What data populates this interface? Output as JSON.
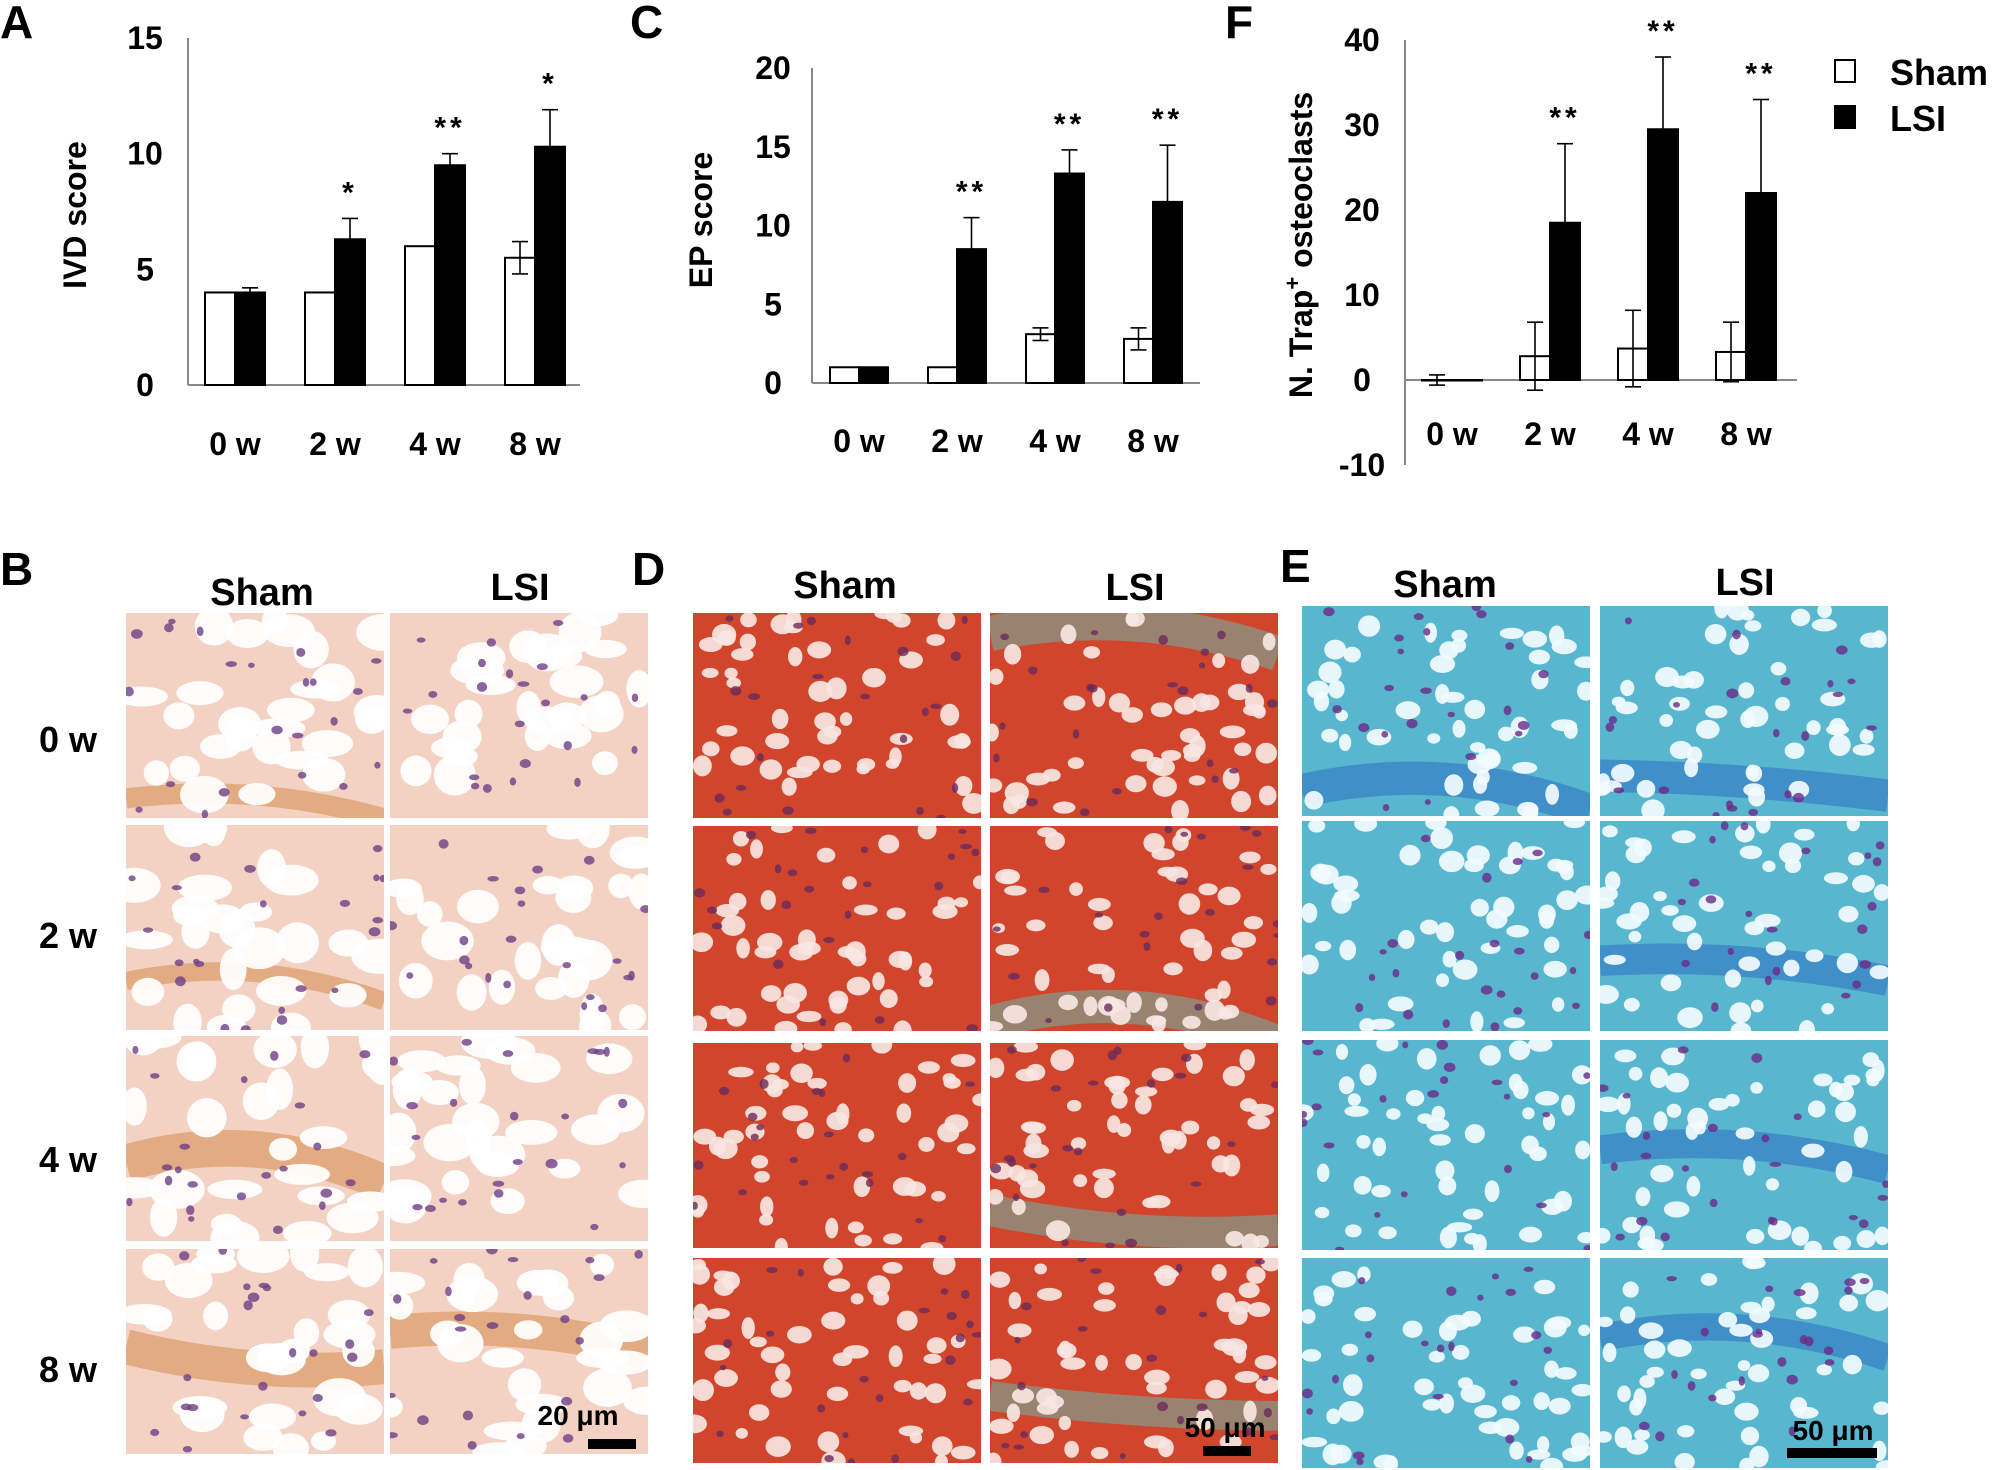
{
  "chart_data": [
    {
      "id": "A",
      "type": "bar",
      "panel_label": "A",
      "ylabel": "IVD score",
      "ylim": [
        0,
        15
      ],
      "yticks": [
        0,
        5,
        10,
        15
      ],
      "categories": [
        "0 w",
        "2 w",
        "4 w",
        "8 w"
      ],
      "series": [
        {
          "name": "Sham",
          "values": [
            4.0,
            4.0,
            6.0,
            5.5
          ],
          "errors": [
            0,
            0,
            0,
            0.7
          ],
          "fill": "#ffffff"
        },
        {
          "name": "LSI",
          "values": [
            4.0,
            6.3,
            9.5,
            10.3
          ],
          "errors": [
            0.2,
            0.9,
            0.5,
            1.6
          ],
          "fill": "#000000"
        }
      ],
      "significance": [
        "",
        "*",
        "**",
        "*"
      ]
    },
    {
      "id": "C",
      "type": "bar",
      "panel_label": "C",
      "ylabel": "EP score",
      "ylim": [
        0,
        20
      ],
      "yticks": [
        0,
        5,
        10,
        15,
        20
      ],
      "categories": [
        "0 w",
        "2 w",
        "4 w",
        "8 w"
      ],
      "series": [
        {
          "name": "Sham",
          "values": [
            1.0,
            1.0,
            3.1,
            2.8
          ],
          "errors": [
            0,
            0,
            0.4,
            0.7
          ],
          "fill": "#ffffff"
        },
        {
          "name": "LSI",
          "values": [
            1.0,
            8.5,
            13.3,
            11.5
          ],
          "errors": [
            0,
            2.0,
            1.5,
            3.6
          ],
          "fill": "#000000"
        }
      ],
      "significance": [
        "",
        "**",
        "**",
        "**"
      ]
    },
    {
      "id": "F",
      "type": "bar",
      "panel_label": "F",
      "ylabel_main": "N. Trap",
      "ylabel_sup": "+",
      "ylabel_rest": " osteoclasts",
      "ylim": [
        -10,
        40
      ],
      "yticks": [
        -10,
        0,
        10,
        20,
        30,
        40
      ],
      "categories": [
        "0 w",
        "2 w",
        "4 w",
        "8 w"
      ],
      "series": [
        {
          "name": "Sham",
          "values": [
            0,
            2.8,
            3.7,
            3.3
          ],
          "errors": [
            0.6,
            4.0,
            4.5,
            3.5
          ],
          "fill": "#ffffff"
        },
        {
          "name": "LSI",
          "values": [
            0,
            18.5,
            29.5,
            22.0
          ],
          "errors": [
            0,
            9.3,
            8.5,
            11.0
          ],
          "fill": "#000000"
        }
      ],
      "significance": [
        "",
        "**",
        "**",
        "**"
      ]
    }
  ],
  "legend": [
    {
      "label": "Sham",
      "fill": "#ffffff"
    },
    {
      "label": "LSI",
      "fill": "#000000"
    }
  ],
  "histology": [
    {
      "panel_label": "B",
      "columns": [
        "Sham",
        "LSI"
      ],
      "rows": [
        "0 w",
        "2 w",
        "4 w",
        "8 w"
      ],
      "scale_bar": "20 μm",
      "stain": "H&E",
      "colors": {
        "bg": "#f3d2c4",
        "cell": "#ffffff",
        "nucleus": "#6e3f86",
        "accent": "#d48a4c"
      }
    },
    {
      "panel_label": "D",
      "columns": [
        "Sham",
        "LSI"
      ],
      "rows": [],
      "scale_bar": "50 μm",
      "stain": "Safranin O",
      "colors": {
        "bg": "#d2452d",
        "cell": "#f7e6e2",
        "nucleus": "#6a2a5a",
        "accent": "#69b5a8"
      }
    },
    {
      "panel_label": "E",
      "columns": [
        "Sham",
        "LSI"
      ],
      "rows": [],
      "scale_bar": "50 μm",
      "stain": "TRAP",
      "colors": {
        "bg": "#58b7cf",
        "cell": "#f2fbff",
        "nucleus": "#6a2b88",
        "accent": "#2f6fc2"
      }
    }
  ]
}
